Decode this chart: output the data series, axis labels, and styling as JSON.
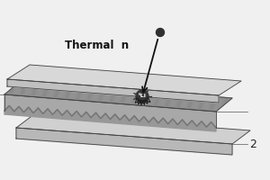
{
  "bg_color": "#f0f0f0",
  "top_plate_top_color": "#d8d8d8",
  "top_plate_front_color": "#c0c0c0",
  "middle_top_color": "#b0b0b0",
  "middle_front_color": "#a8a8a8",
  "middle_stripe_color": "#888888",
  "zigzag_color": "#777777",
  "bottom_plate_top_color": "#d0d0d0",
  "bottom_plate_front_color": "#b8b8b8",
  "neutron_color": "#303030",
  "reaction_center_color": "#383838",
  "reaction_ray_color": "#282828",
  "arrow_color": "#111111",
  "edge_color": "#444444",
  "text_thermal": "Thermal  n",
  "text_label": "2",
  "n_stripes": 16,
  "n_zigzag": 22,
  "zigzag_amplitude": 6
}
